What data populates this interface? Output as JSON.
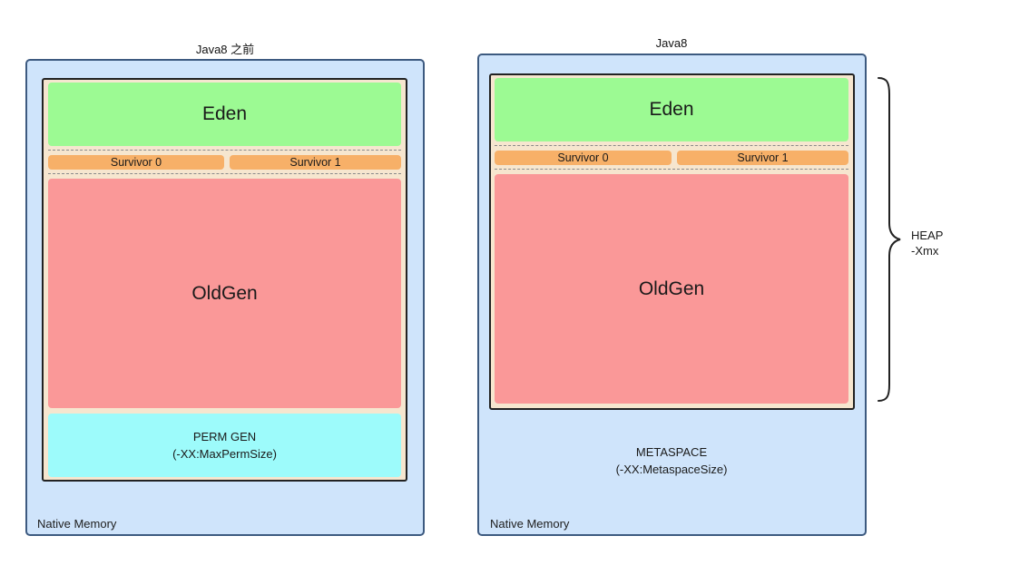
{
  "left_panel": {
    "title": "Java8 之前",
    "eden_label": "Eden",
    "survivor0_label": "Survivor 0",
    "survivor1_label": "Survivor 1",
    "oldgen_label": "OldGen",
    "permgen_line1": "PERM GEN",
    "permgen_line2": "(-XX:MaxPermSize)",
    "native_label": "Native Memory"
  },
  "right_panel": {
    "title": "Java8",
    "eden_label": "Eden",
    "survivor0_label": "Survivor 0",
    "survivor1_label": "Survivor 1",
    "oldgen_label": "OldGen",
    "metaspace_line1": "METASPACE",
    "metaspace_line2": "(-XX:MetaspaceSize)",
    "native_label": "Native Memory"
  },
  "heap_annotation": {
    "line1": "HEAP",
    "line2": "-Xmx"
  },
  "colors": {
    "native_bg": "#cfe4fb",
    "native_border": "#3d5a80",
    "heap_bg": "#f6e6cf",
    "eden": "#9cfa93",
    "survivor": "#f7b068",
    "oldgen": "#fa9898",
    "permgen": "#9dfbfb"
  }
}
